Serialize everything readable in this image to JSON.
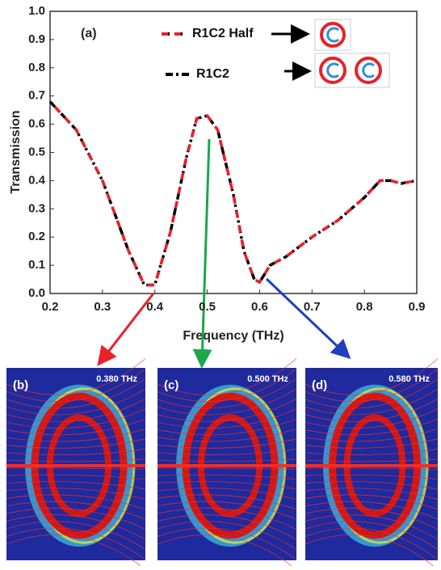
{
  "chart_data": {
    "type": "line",
    "annotation": "(a)",
    "xlabel": "Frequency (THz)",
    "ylabel": "Transmission",
    "x": [
      0.2,
      0.25,
      0.3,
      0.35,
      0.38,
      0.4,
      0.43,
      0.46,
      0.48,
      0.5,
      0.52,
      0.55,
      0.57,
      0.59,
      0.6,
      0.62,
      0.65,
      0.7,
      0.75,
      0.8,
      0.83,
      0.85,
      0.87,
      0.9
    ],
    "series": [
      {
        "name": "R1C2 Half",
        "color": "#e8212a",
        "values": [
          0.68,
          0.58,
          0.4,
          0.15,
          0.03,
          0.03,
          0.22,
          0.48,
          0.62,
          0.63,
          0.58,
          0.35,
          0.15,
          0.05,
          0.04,
          0.1,
          0.13,
          0.2,
          0.26,
          0.34,
          0.4,
          0.4,
          0.39,
          0.4
        ]
      },
      {
        "name": "R1C2",
        "color": "#000000",
        "values": [
          0.68,
          0.58,
          0.4,
          0.15,
          0.03,
          0.03,
          0.22,
          0.48,
          0.62,
          0.63,
          0.58,
          0.35,
          0.15,
          0.05,
          0.04,
          0.1,
          0.13,
          0.2,
          0.26,
          0.34,
          0.4,
          0.4,
          0.39,
          0.4
        ]
      }
    ],
    "xlim": [
      0.2,
      0.9
    ],
    "xticks": [
      0.2,
      0.3,
      0.4,
      0.5,
      0.6,
      0.7,
      0.8,
      0.9
    ],
    "ylim": [
      0,
      1
    ],
    "yticks": [
      {
        "value": 0,
        "label": "0.0"
      },
      0.1,
      0.2,
      0.3,
      0.4,
      0.5,
      0.6,
      0.7,
      0.8,
      0.9,
      {
        "value": 1,
        "label": "1.0"
      }
    ],
    "panels": [
      {
        "label": "(b)",
        "text": "0.380 THz"
      },
      {
        "label": "(c)",
        "text": "0.500 THz"
      },
      {
        "label": "(d)",
        "text": "0.580 THz"
      }
    ]
  }
}
